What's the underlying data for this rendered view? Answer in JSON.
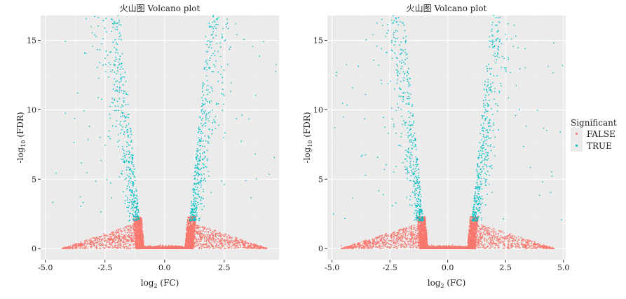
{
  "colors": {
    "false": "#f8766d",
    "true": "#00bfc4",
    "panel": "#ebebeb",
    "grid": "#ffffff"
  },
  "chart_data": [
    {
      "type": "scatter",
      "title": "火山图 Volcano plot",
      "xlabel_main": "log",
      "xlabel_sub": "2",
      "xlabel_tail": " (FC)",
      "ylabel_main": "-log",
      "ylabel_sub": "10",
      "ylabel_tail": " (FDR)",
      "xlim": [
        -5.2,
        4.8
      ],
      "ylim": [
        -0.8,
        16.8
      ],
      "xticks": [
        -5.0,
        -2.5,
        0.0,
        2.5
      ],
      "xtick_labels": [
        "-5.0",
        "-2.5",
        "0.0",
        "2.5"
      ],
      "yticks": [
        0,
        5,
        10,
        15
      ],
      "ytick_labels": [
        "0",
        "5",
        "10",
        "15"
      ],
      "grid": true,
      "series": [
        {
          "name": "FALSE",
          "color": "#f8766d",
          "shape": "V-shaped band near y = 0, |x| < 4.3"
        },
        {
          "name": "TRUE",
          "color": "#00bfc4",
          "shape": "two arms rising from |x| ≈ 1 up to y ≈ 16.8"
        }
      ]
    },
    {
      "type": "scatter",
      "title": "火山图 Volcano plot",
      "xlabel_main": "log",
      "xlabel_sub": "2",
      "xlabel_tail": " (FC)",
      "ylabel_main": "-log",
      "ylabel_sub": "10",
      "ylabel_tail": " (FDR)",
      "xlim": [
        -5.2,
        5.1
      ],
      "ylim": [
        -0.8,
        16.8
      ],
      "xticks": [
        -5.0,
        -2.5,
        0.0,
        2.5,
        5.0
      ],
      "xtick_labels": [
        "-5.0",
        "-2.5",
        "0.0",
        "2.5",
        "5.0"
      ],
      "yticks": [
        0,
        5,
        10,
        15
      ],
      "ytick_labels": [
        "0",
        "5",
        "10",
        "15"
      ],
      "grid": true,
      "series": [
        {
          "name": "FALSE",
          "color": "#f8766d",
          "shape": "V-shaped band near y = 0, |x| < 4.5"
        },
        {
          "name": "TRUE",
          "color": "#00bfc4",
          "shape": "two arms rising from |x| ≈ 1 up to y ≈ 16.8"
        }
      ]
    }
  ],
  "legend": {
    "title": "Significant",
    "items": [
      {
        "label": "FALSE",
        "color": "#f8766d"
      },
      {
        "label": "TRUE",
        "color": "#00bfc4"
      }
    ]
  }
}
